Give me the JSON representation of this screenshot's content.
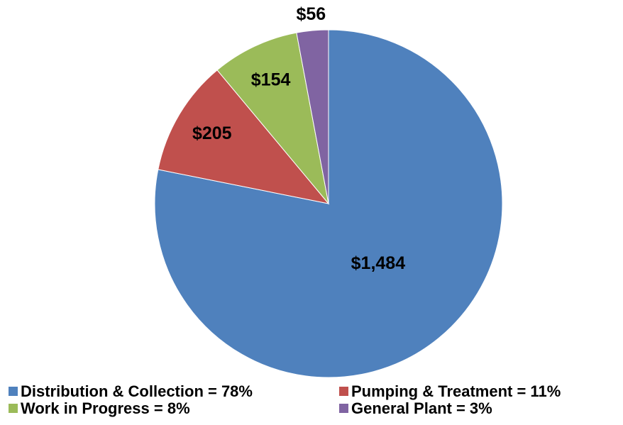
{
  "chart_data": {
    "type": "pie",
    "categories": [
      "Distribution & Collection = 78%",
      "Pumping & Treatment = 11%",
      "Work in Progress = 8%",
      "General Plant = 3%"
    ],
    "values": [
      1484,
      205,
      154,
      56
    ],
    "value_labels": [
      "$1,484",
      "$205",
      "$154",
      "$56"
    ],
    "colors": [
      "#4f81bd",
      "#c0504d",
      "#9bbb59",
      "#8064a2"
    ],
    "legend": "bottom"
  }
}
